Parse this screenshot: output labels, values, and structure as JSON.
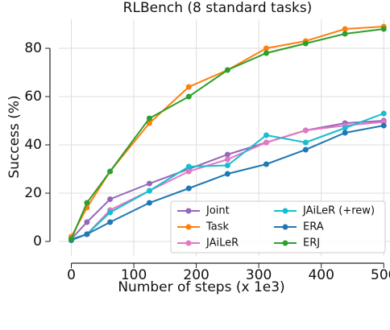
{
  "chart_data": {
    "type": "line",
    "title": "RLBench (8 standard tasks)",
    "x_label": "Number of steps (x 1e3)",
    "y_label": "Success (%)",
    "x": [
      0,
      25,
      62,
      125,
      188,
      250,
      312,
      375,
      438,
      500
    ],
    "series": [
      {
        "name": "Joint",
        "color": "#9467bd",
        "values": [
          1,
          8,
          17.5,
          24,
          30,
          36,
          41,
          46,
          49,
          50
        ]
      },
      {
        "name": "Task",
        "color": "#ff7f0e",
        "values": [
          2,
          14,
          29,
          49,
          64,
          71,
          80,
          83,
          88,
          89
        ]
      },
      {
        "name": "JAiLeR",
        "color": "#e377c2",
        "values": [
          1,
          3,
          13,
          21,
          29,
          34,
          41,
          46,
          48,
          49.5
        ]
      },
      {
        "name": "JAiLeR (+rew)",
        "color": "#17becf",
        "values": [
          1,
          3,
          12,
          21,
          31,
          31.5,
          44,
          41,
          47,
          53
        ]
      },
      {
        "name": "ERA",
        "color": "#1f77b4",
        "values": [
          0.5,
          3,
          8,
          16,
          22,
          28,
          32,
          38,
          45,
          48
        ]
      },
      {
        "name": "ERJ",
        "color": "#2ca02c",
        "values": [
          1,
          16,
          29,
          51,
          60,
          71,
          78,
          82,
          86,
          88
        ]
      }
    ],
    "xlim": [
      -20,
      510
    ],
    "ylim": [
      -6,
      92
    ],
    "xticks": [
      0,
      100,
      200,
      300,
      400,
      500
    ],
    "yticks": [
      0,
      20,
      40,
      60,
      80
    ],
    "grid": true,
    "legend": "lower right"
  }
}
